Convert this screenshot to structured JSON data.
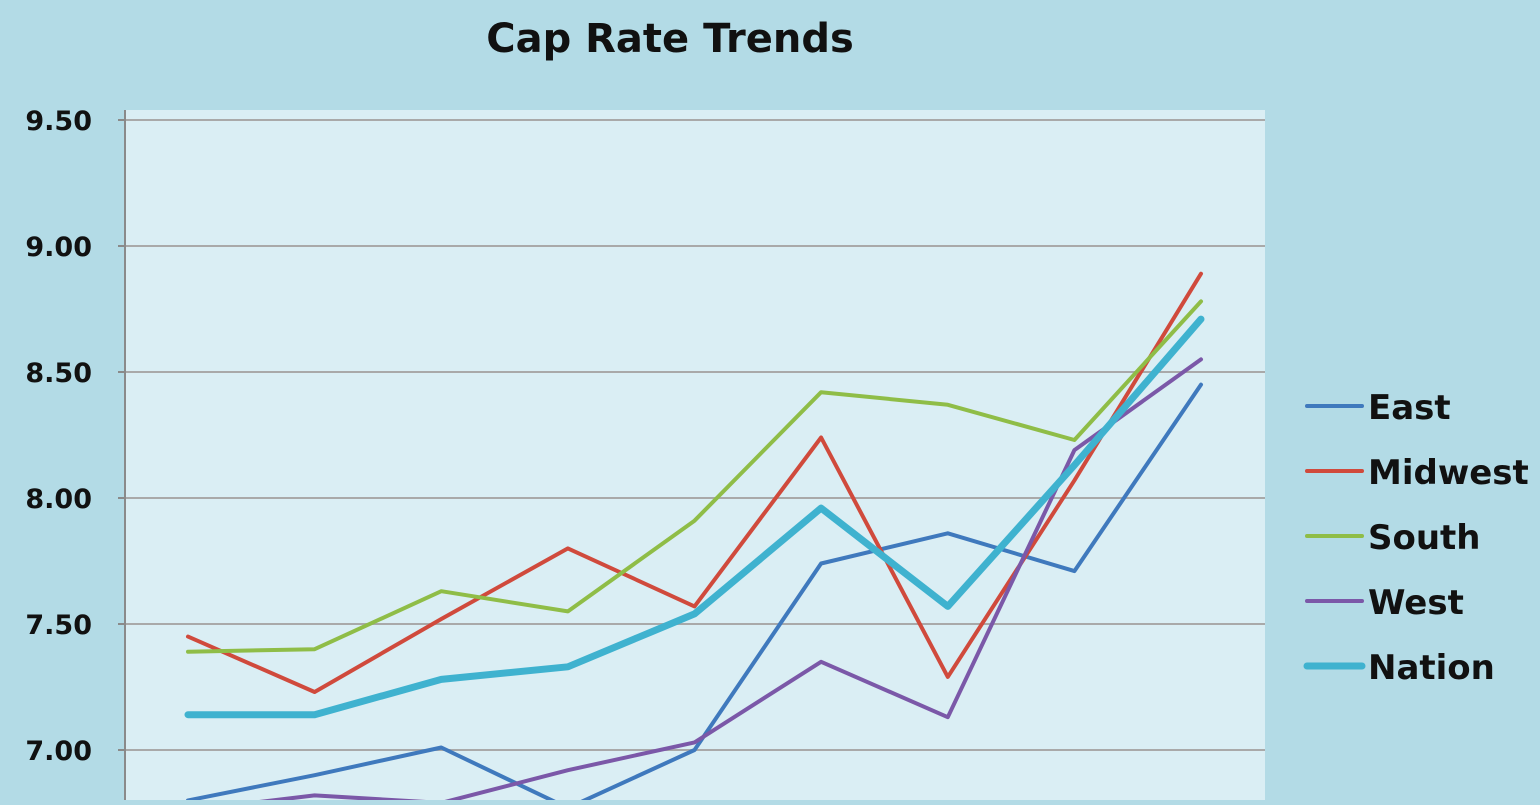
{
  "chart_data": {
    "type": "line",
    "title": "Cap Rate Trends",
    "xlabel": "",
    "ylabel": "",
    "ylim": [
      6.8,
      9.5
    ],
    "yticks": [
      7.0,
      7.5,
      8.0,
      8.5,
      9.0,
      9.5
    ],
    "ytick_labels": [
      "7.00",
      "7.50",
      "8.00",
      "8.50",
      "9.00",
      "9.50"
    ],
    "grid": true,
    "legend": "right",
    "series": [
      {
        "name": "East",
        "color": "#3f79bd",
        "values": [
          6.8,
          6.9,
          7.01,
          6.77,
          7.0,
          7.74,
          7.86,
          7.71,
          8.45
        ]
      },
      {
        "name": "Midwest",
        "color": "#d04a3c",
        "values": [
          7.45,
          7.23,
          7.52,
          7.8,
          7.57,
          8.24,
          7.29,
          8.07,
          8.89
        ]
      },
      {
        "name": "South",
        "color": "#8fbd47",
        "values": [
          7.39,
          7.4,
          7.63,
          7.55,
          7.91,
          8.42,
          8.37,
          8.23,
          8.78
        ]
      },
      {
        "name": "West",
        "color": "#7b58a8",
        "values": [
          6.76,
          6.82,
          6.79,
          6.92,
          7.03,
          7.35,
          7.13,
          8.19,
          8.55
        ]
      },
      {
        "name": "Nation",
        "color": "#3fb2cf",
        "values": [
          7.14,
          7.14,
          7.28,
          7.33,
          7.54,
          7.96,
          7.57,
          8.13,
          8.71
        ]
      }
    ]
  }
}
